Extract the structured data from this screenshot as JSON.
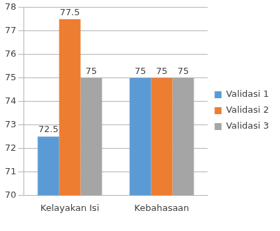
{
  "chart_data": {
    "type": "bar",
    "categories": [
      "Kelayakan Isi",
      "Kebahasaan"
    ],
    "series": [
      {
        "name": "Validasi 1",
        "color": "#5b9bd5",
        "values": [
          72.5,
          75
        ]
      },
      {
        "name": "Validasi 2",
        "color": "#ed7d31",
        "values": [
          77.5,
          75
        ]
      },
      {
        "name": "Validasi 3",
        "color": "#a5a5a5",
        "values": [
          75,
          75
        ]
      }
    ],
    "ylim": [
      70,
      78
    ],
    "yticks": [
      70,
      71,
      72,
      73,
      74,
      75,
      76,
      77,
      78
    ],
    "grid": true,
    "legend": "right",
    "data_labels": true
  }
}
